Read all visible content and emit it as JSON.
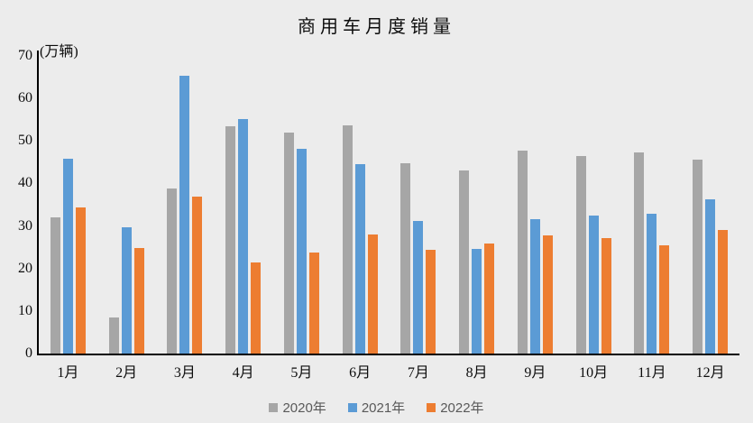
{
  "title": "商用车月度销量",
  "unit_label": "(万辆)",
  "colors": {
    "background": "#ECECEC",
    "axis": "#000000",
    "legend_text": "#595959",
    "series_2020": "#A6A6A6",
    "series_2021": "#5B9BD5",
    "series_2022": "#ED7D31"
  },
  "chart_data": {
    "type": "bar",
    "title": "商用车月度销量",
    "ylabel": "(万辆)",
    "xlabel": "",
    "ylim": [
      0,
      70
    ],
    "y_ticks": [
      0,
      10,
      20,
      30,
      40,
      50,
      60,
      70
    ],
    "grid": false,
    "legend_position": "bottom",
    "categories": [
      "1月",
      "2月",
      "3月",
      "4月",
      "5月",
      "6月",
      "7月",
      "8月",
      "9月",
      "10月",
      "11月",
      "12月"
    ],
    "series": [
      {
        "name": "2020年",
        "color": "#A6A6A6",
        "values": [
          32.0,
          8.5,
          38.9,
          53.4,
          52.0,
          53.6,
          44.8,
          43.1,
          47.7,
          46.5,
          47.3,
          45.7
        ]
      },
      {
        "name": "2021年",
        "color": "#5B9BD5",
        "values": [
          45.8,
          29.8,
          65.3,
          55.1,
          48.1,
          44.5,
          31.2,
          24.7,
          31.6,
          32.4,
          32.9,
          36.3
        ]
      },
      {
        "name": "2022年",
        "color": "#ED7D31",
        "values": [
          34.4,
          24.9,
          37.0,
          21.5,
          23.8,
          28.0,
          24.4,
          25.8,
          27.8,
          27.2,
          25.4,
          29.1
        ]
      }
    ]
  }
}
